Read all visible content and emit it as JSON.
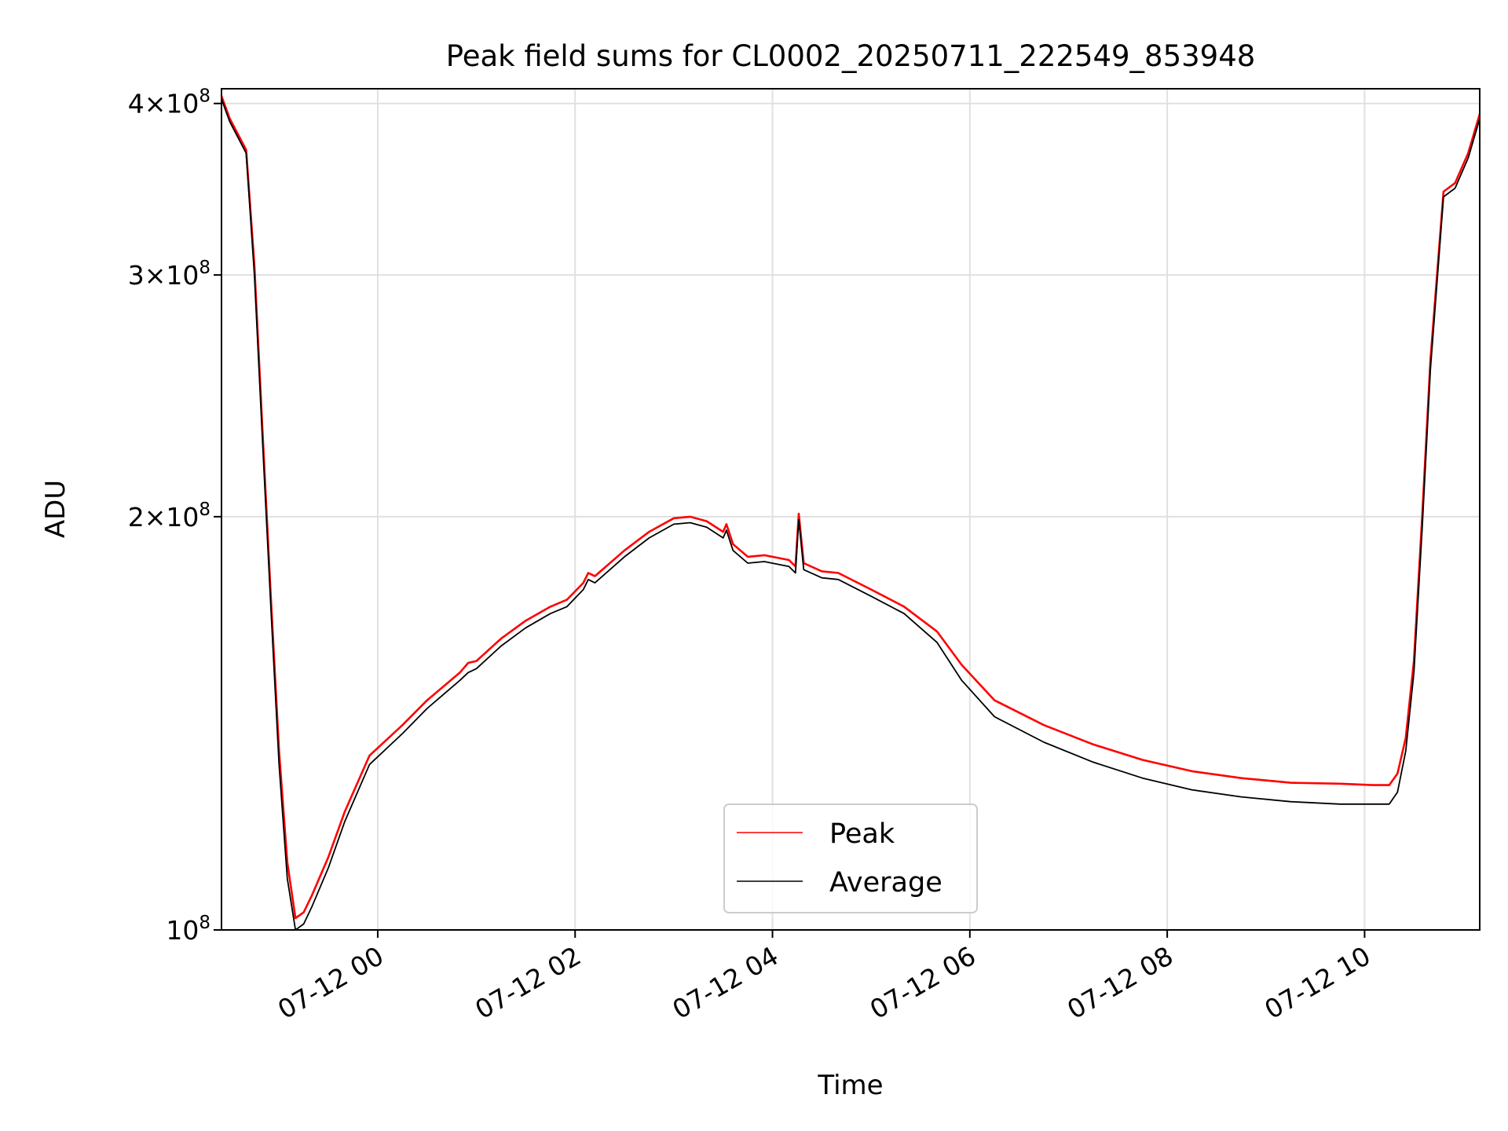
{
  "chart_data": {
    "type": "line",
    "title": "Peak field sums for CL0002_20250711_222549_853948",
    "xlabel": "Time",
    "ylabel": "ADU",
    "y_scale": "log",
    "ylim": [
      100000000,
      410000000
    ],
    "xlim": [
      "2025-07-11 22:25",
      "2025-07-12 11:10"
    ],
    "grid": true,
    "legend_position": "lower center",
    "x_ticks": [
      {
        "t": "2025-07-12 00:00",
        "label": "07-12 00"
      },
      {
        "t": "2025-07-12 02:00",
        "label": "07-12 02"
      },
      {
        "t": "2025-07-12 04:00",
        "label": "07-12 04"
      },
      {
        "t": "2025-07-12 06:00",
        "label": "07-12 06"
      },
      {
        "t": "2025-07-12 08:00",
        "label": "07-12 08"
      },
      {
        "t": "2025-07-12 10:00",
        "label": "07-12 10"
      }
    ],
    "y_ticks": [
      {
        "value": 100000000,
        "mantissa": "",
        "power": "8"
      },
      {
        "value": 200000000,
        "mantissa": "2",
        "power": "8"
      },
      {
        "value": 300000000,
        "mantissa": "3",
        "power": "8"
      },
      {
        "value": 400000000,
        "mantissa": "4",
        "power": "8"
      }
    ],
    "series": [
      {
        "name": "Peak",
        "color": "#ff0000",
        "points": [
          [
            "2025-07-11 22:25",
            405000000
          ],
          [
            "2025-07-11 22:30",
            390000000
          ],
          [
            "2025-07-11 22:40",
            370000000
          ],
          [
            "2025-07-11 22:45",
            305000000
          ],
          [
            "2025-07-11 22:50",
            230000000
          ],
          [
            "2025-07-11 22:55",
            175000000
          ],
          [
            "2025-07-11 23:00",
            135000000
          ],
          [
            "2025-07-11 23:05",
            112000000
          ],
          [
            "2025-07-11 23:10",
            102000000
          ],
          [
            "2025-07-11 23:15",
            103000000
          ],
          [
            "2025-07-11 23:20",
            106000000
          ],
          [
            "2025-07-11 23:30",
            113000000
          ],
          [
            "2025-07-11 23:40",
            122000000
          ],
          [
            "2025-07-11 23:55",
            134000000
          ],
          [
            "2025-07-12 00:15",
            141000000
          ],
          [
            "2025-07-12 00:30",
            147000000
          ],
          [
            "2025-07-12 00:50",
            154000000
          ],
          [
            "2025-07-12 00:55",
            156500000
          ],
          [
            "2025-07-12 01:00",
            157000000
          ],
          [
            "2025-07-12 01:15",
            163000000
          ],
          [
            "2025-07-12 01:30",
            168000000
          ],
          [
            "2025-07-12 01:45",
            172000000
          ],
          [
            "2025-07-12 01:55",
            174000000
          ],
          [
            "2025-07-12 02:05",
            179000000
          ],
          [
            "2025-07-12 02:08",
            182000000
          ],
          [
            "2025-07-12 02:12",
            181000000
          ],
          [
            "2025-07-12 02:30",
            189000000
          ],
          [
            "2025-07-12 02:45",
            195000000
          ],
          [
            "2025-07-12 03:00",
            199500000
          ],
          [
            "2025-07-12 03:10",
            200000000
          ],
          [
            "2025-07-12 03:20",
            198500000
          ],
          [
            "2025-07-12 03:30",
            195000000
          ],
          [
            "2025-07-12 03:32",
            197500000
          ],
          [
            "2025-07-12 03:36",
            191000000
          ],
          [
            "2025-07-12 03:45",
            187000000
          ],
          [
            "2025-07-12 03:55",
            187500000
          ],
          [
            "2025-07-12 04:10",
            186000000
          ],
          [
            "2025-07-12 04:14",
            184000000
          ],
          [
            "2025-07-12 04:16",
            201000000
          ],
          [
            "2025-07-12 04:19",
            185000000
          ],
          [
            "2025-07-12 04:30",
            182500000
          ],
          [
            "2025-07-12 04:40",
            182000000
          ],
          [
            "2025-07-12 05:00",
            177000000
          ],
          [
            "2025-07-12 05:20",
            172000000
          ],
          [
            "2025-07-12 05:40",
            165000000
          ],
          [
            "2025-07-12 05:55",
            156000000
          ],
          [
            "2025-07-12 06:15",
            147000000
          ],
          [
            "2025-07-12 06:45",
            141000000
          ],
          [
            "2025-07-12 07:15",
            136500000
          ],
          [
            "2025-07-12 07:45",
            133000000
          ],
          [
            "2025-07-12 08:15",
            130500000
          ],
          [
            "2025-07-12 08:45",
            129000000
          ],
          [
            "2025-07-12 09:15",
            128000000
          ],
          [
            "2025-07-12 09:45",
            127800000
          ],
          [
            "2025-07-12 10:05",
            127500000
          ],
          [
            "2025-07-12 10:15",
            127500000
          ],
          [
            "2025-07-12 10:20",
            130000000
          ],
          [
            "2025-07-12 10:25",
            138000000
          ],
          [
            "2025-07-12 10:30",
            157000000
          ],
          [
            "2025-07-12 10:35",
            200000000
          ],
          [
            "2025-07-12 10:40",
            260000000
          ],
          [
            "2025-07-12 10:48",
            345000000
          ],
          [
            "2025-07-12 10:55",
            350000000
          ],
          [
            "2025-07-12 11:03",
            368000000
          ],
          [
            "2025-07-12 11:10",
            393000000
          ]
        ]
      },
      {
        "name": "Average",
        "color": "#000000",
        "points": [
          [
            "2025-07-11 22:25",
            403000000
          ],
          [
            "2025-07-11 22:30",
            388000000
          ],
          [
            "2025-07-11 22:40",
            368000000
          ],
          [
            "2025-07-11 22:45",
            300000000
          ],
          [
            "2025-07-11 22:50",
            226000000
          ],
          [
            "2025-07-11 22:55",
            172000000
          ],
          [
            "2025-07-11 23:00",
            132000000
          ],
          [
            "2025-07-11 23:05",
            109000000
          ],
          [
            "2025-07-11 23:10",
            100000000
          ],
          [
            "2025-07-11 23:15",
            101000000
          ],
          [
            "2025-07-11 23:20",
            104000000
          ],
          [
            "2025-07-11 23:30",
            111000000
          ],
          [
            "2025-07-11 23:40",
            120000000
          ],
          [
            "2025-07-11 23:55",
            132000000
          ],
          [
            "2025-07-12 00:15",
            139000000
          ],
          [
            "2025-07-12 00:30",
            145000000
          ],
          [
            "2025-07-12 00:50",
            152000000
          ],
          [
            "2025-07-12 00:55",
            154000000
          ],
          [
            "2025-07-12 01:00",
            155000000
          ],
          [
            "2025-07-12 01:15",
            161000000
          ],
          [
            "2025-07-12 01:30",
            166000000
          ],
          [
            "2025-07-12 01:45",
            170000000
          ],
          [
            "2025-07-12 01:55",
            172000000
          ],
          [
            "2025-07-12 02:05",
            177000000
          ],
          [
            "2025-07-12 02:08",
            180000000
          ],
          [
            "2025-07-12 02:12",
            179000000
          ],
          [
            "2025-07-12 02:30",
            187000000
          ],
          [
            "2025-07-12 02:45",
            193000000
          ],
          [
            "2025-07-12 03:00",
            197500000
          ],
          [
            "2025-07-12 03:10",
            198000000
          ],
          [
            "2025-07-12 03:20",
            196500000
          ],
          [
            "2025-07-12 03:30",
            193000000
          ],
          [
            "2025-07-12 03:32",
            195500000
          ],
          [
            "2025-07-12 03:36",
            189000000
          ],
          [
            "2025-07-12 03:45",
            185000000
          ],
          [
            "2025-07-12 03:55",
            185500000
          ],
          [
            "2025-07-12 04:10",
            184000000
          ],
          [
            "2025-07-12 04:14",
            182000000
          ],
          [
            "2025-07-12 04:16",
            199000000
          ],
          [
            "2025-07-12 04:19",
            183000000
          ],
          [
            "2025-07-12 04:30",
            180500000
          ],
          [
            "2025-07-12 04:40",
            180000000
          ],
          [
            "2025-07-12 05:00",
            175000000
          ],
          [
            "2025-07-12 05:20",
            170000000
          ],
          [
            "2025-07-12 05:40",
            162000000
          ],
          [
            "2025-07-12 05:55",
            152000000
          ],
          [
            "2025-07-12 06:15",
            143000000
          ],
          [
            "2025-07-12 06:45",
            137000000
          ],
          [
            "2025-07-12 07:15",
            132500000
          ],
          [
            "2025-07-12 07:45",
            129000000
          ],
          [
            "2025-07-12 08:15",
            126500000
          ],
          [
            "2025-07-12 08:45",
            125000000
          ],
          [
            "2025-07-12 09:15",
            124000000
          ],
          [
            "2025-07-12 09:45",
            123500000
          ],
          [
            "2025-07-12 10:05",
            123500000
          ],
          [
            "2025-07-12 10:15",
            123500000
          ],
          [
            "2025-07-12 10:20",
            126000000
          ],
          [
            "2025-07-12 10:25",
            135000000
          ],
          [
            "2025-07-12 10:30",
            154000000
          ],
          [
            "2025-07-12 10:35",
            196000000
          ],
          [
            "2025-07-12 10:40",
            256000000
          ],
          [
            "2025-07-12 10:48",
            342000000
          ],
          [
            "2025-07-12 10:55",
            347000000
          ],
          [
            "2025-07-12 11:03",
            365000000
          ],
          [
            "2025-07-12 11:10",
            390000000
          ]
        ]
      }
    ]
  }
}
